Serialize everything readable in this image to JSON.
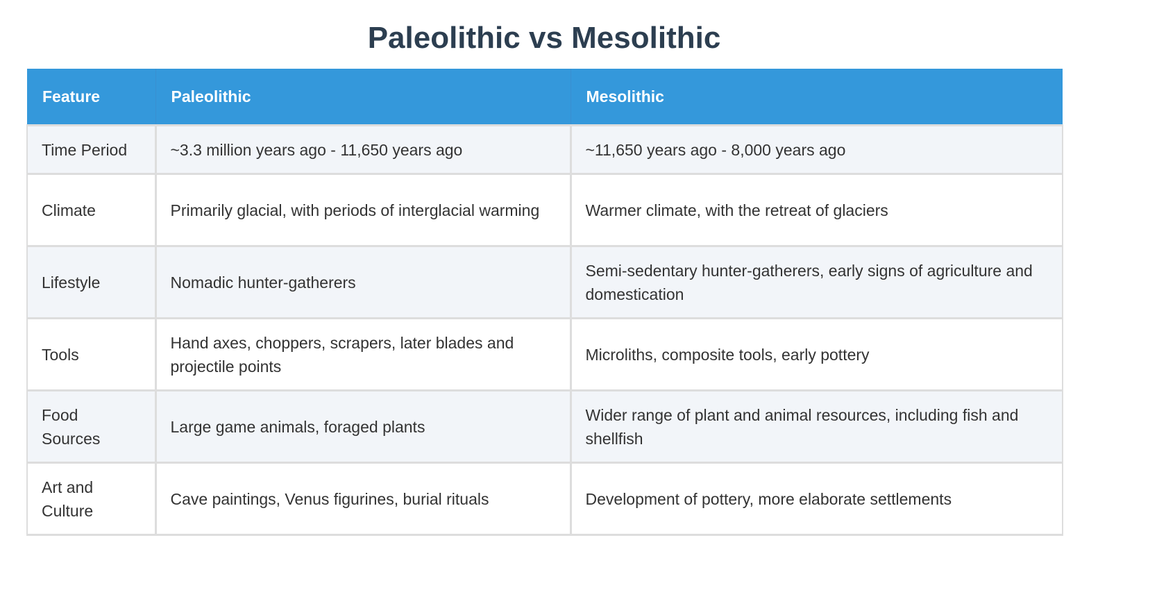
{
  "title": "Paleolithic vs Mesolithic",
  "table": {
    "headers": [
      "Feature",
      "Paleolithic",
      "Mesolithic"
    ],
    "rows": [
      {
        "feature": "Time Period",
        "paleolithic": "~3.3 million years ago - 11,650 years ago",
        "mesolithic": "~11,650 years ago - 8,000 years ago"
      },
      {
        "feature": "Climate",
        "paleolithic": "Primarily glacial, with periods of interglacial warming",
        "mesolithic": "Warmer climate, with the retreat of glaciers"
      },
      {
        "feature": "Lifestyle",
        "paleolithic": "Nomadic hunter-gatherers",
        "mesolithic": "Semi-sedentary hunter-gatherers, early signs of agriculture and domestication"
      },
      {
        "feature": "Tools",
        "paleolithic": "Hand axes, choppers, scrapers, later blades and projectile points",
        "mesolithic": "Microliths, composite tools, early pottery"
      },
      {
        "feature": "Food Sources",
        "paleolithic": "Large game animals, foraged plants",
        "mesolithic": "Wider range of plant and animal resources, including fish and shellfish"
      },
      {
        "feature": "Art and Culture",
        "paleolithic": "Cave paintings, Venus figurines, burial rituals",
        "mesolithic": "Development of pottery, more elaborate settlements"
      }
    ]
  },
  "colors": {
    "title": "#2c3e50",
    "header_bg": "#3498db",
    "header_text": "#ffffff",
    "row_alt_bg": "#f2f5f9",
    "border": "#dddddd"
  }
}
